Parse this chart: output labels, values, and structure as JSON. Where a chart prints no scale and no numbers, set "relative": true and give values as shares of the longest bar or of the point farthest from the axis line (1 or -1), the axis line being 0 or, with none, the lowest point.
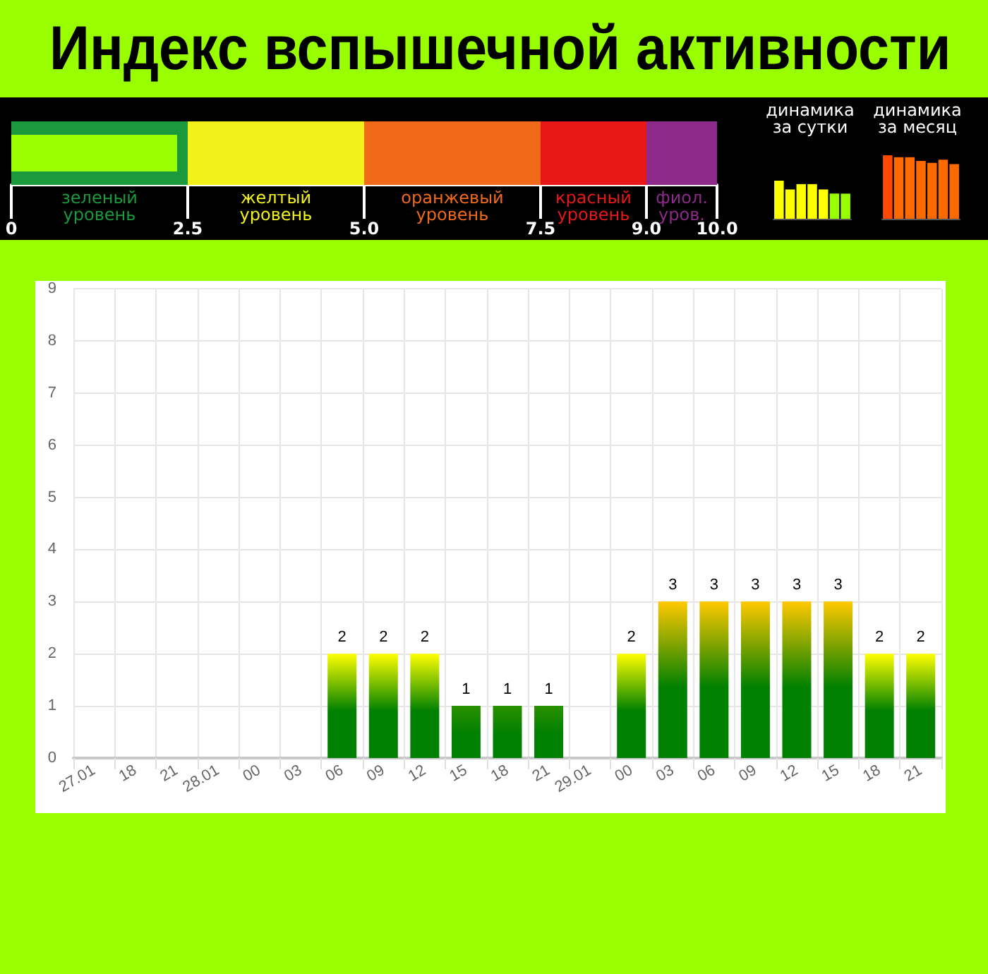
{
  "chart_data": [
    {
      "type": "bar",
      "title": "Индекс вспышечной активности",
      "orientation": "horizontal",
      "categories": [
        null
      ],
      "values": [
        2.35
      ],
      "color": "#99ff00",
      "xlim": [
        0,
        10
      ],
      "xticks": [
        0,
        2.5,
        {
          "value": 5,
          "label": "5.0"
        },
        7.5,
        {
          "value": 9,
          "label": "9.0"
        },
        {
          "value": 10,
          "label": "10.0"
        }
      ],
      "tick_labels": "x",
      "bands": [
        {
          "axis": "x",
          "from": 0,
          "to": 2.5,
          "label": "зеленый\nуровень",
          "color": "#1a9a3c"
        },
        {
          "axis": "x",
          "from": 2.5,
          "to": 5,
          "label": "желтый\nуровень",
          "color": "#f2f21a"
        },
        {
          "axis": "x",
          "from": 5,
          "to": 7.5,
          "label": "оранжевый\nуровень",
          "color": "#f06a1a"
        },
        {
          "axis": "x",
          "from": 7.5,
          "to": 9,
          "label": "красный\nуровень",
          "color": "#e81818"
        },
        {
          "axis": "x",
          "from": 9,
          "to": 10,
          "label": "фиол.\nуров.",
          "color": "#8e2a8a"
        }
      ]
    },
    {
      "type": "bar",
      "title": "динамика за сутки",
      "relative": true,
      "tick_labels": false,
      "categories": [
        null,
        null,
        null,
        null,
        null,
        null,
        null
      ],
      "values": [
        1,
        0.77,
        0.91,
        0.91,
        0.77,
        0.66,
        0.66
      ],
      "colors": [
        "#ffff00",
        "#ffff00",
        "#ffff00",
        "#ffff00",
        "#ffff00",
        "#99ff00",
        "#99ff00"
      ]
    },
    {
      "type": "bar",
      "title": "динамика за месяц",
      "relative": true,
      "tick_labels": false,
      "categories": [
        null,
        null,
        null,
        null,
        null,
        null,
        null
      ],
      "values": [
        1,
        0.97,
        0.97,
        0.91,
        0.88,
        0.93,
        0.86
      ],
      "colors": [
        "#ff4800",
        "#ff6a00",
        "#ff6a00",
        "#ff6a00",
        "#ff6a00",
        "#ff6a00",
        "#ff6a00"
      ]
    },
    {
      "type": "bar",
      "categories": [
        "27.01",
        "18",
        "21",
        "28.01",
        "00",
        "03",
        "06",
        "09",
        "12",
        "15",
        "18",
        "21",
        "29.01",
        "00",
        "03",
        "06",
        "09",
        "12",
        "15",
        "18",
        "21"
      ],
      "values": [
        0,
        0,
        0,
        0,
        0,
        0,
        2,
        2,
        2,
        1,
        1,
        1,
        0,
        2,
        3,
        3,
        3,
        3,
        3,
        2,
        2
      ],
      "color": "#008000",
      "colors": [
        "#008000",
        "#008000",
        "#008000",
        "#008000",
        "#008000",
        "#008000",
        "#ffff00",
        "#ffff00",
        "#ffff00",
        "#2a9000",
        "#2a9000",
        "#2a9000",
        "#008000",
        "#ffff00",
        "#ffc800",
        "#ffc800",
        "#ffc800",
        "#ffc800",
        "#ffc800",
        "#ffff00",
        "#ffff00"
      ],
      "value_labels": [
        null,
        null,
        null,
        null,
        null,
        null,
        "2",
        "2",
        "2",
        "1",
        "1",
        "1",
        null,
        "2",
        "3",
        "3",
        "3",
        "3",
        "3",
        "2",
        "2"
      ],
      "ylim": [
        0,
        9
      ],
      "yticks": [
        0,
        1,
        2,
        3,
        4,
        5,
        6,
        7,
        8,
        9
      ],
      "grid": true
    }
  ]
}
